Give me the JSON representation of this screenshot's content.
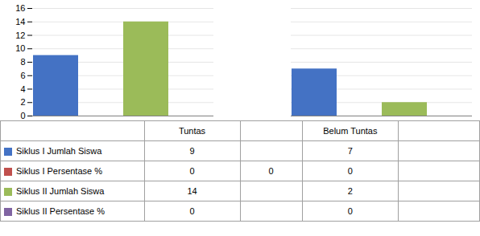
{
  "chart_data": {
    "type": "bar",
    "categories": [
      "Tuntas",
      "Belum Tuntas"
    ],
    "series": [
      {
        "name": "Siklus I Jumlah Siswa",
        "color": "#4472C4",
        "values": [
          9,
          7
        ],
        "table_values": [
          9,
          null,
          7,
          null
        ]
      },
      {
        "name": "Siklus I Persentase %",
        "color": "#C0504D",
        "values": [
          0,
          0
        ],
        "table_values": [
          0,
          0,
          0,
          null
        ]
      },
      {
        "name": "Siklus II Jumlah Siswa",
        "color": "#9BBB59",
        "values": [
          14,
          2
        ],
        "table_values": [
          14,
          null,
          2,
          null
        ]
      },
      {
        "name": "Siklus II Persentase %",
        "color": "#8064A2",
        "values": [
          0,
          0
        ],
        "table_values": [
          0,
          null,
          0,
          null
        ]
      }
    ],
    "table_columns": [
      "Tuntas",
      null,
      "Belum Tuntas",
      null
    ],
    "ylim": [
      0,
      16
    ],
    "yticks": [
      0,
      2,
      4,
      6,
      8,
      10,
      12,
      14,
      16
    ],
    "grid": true,
    "tick_labels": "y"
  }
}
